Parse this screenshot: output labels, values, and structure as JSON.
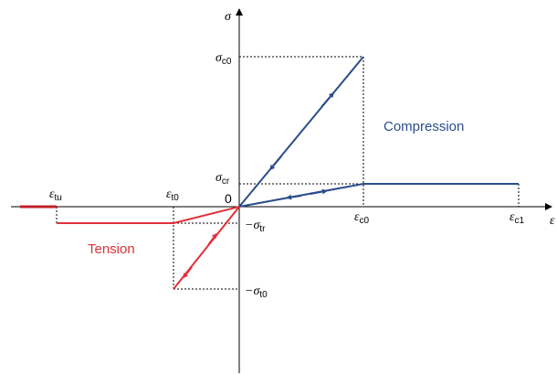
{
  "axes": {
    "y_label": "σ",
    "x_label": "ε",
    "origin": "0"
  },
  "stress_labels": [
    {
      "symbol": "σ",
      "sub": "c0"
    },
    {
      "symbol": "σ",
      "sub": "cr"
    },
    {
      "symbol": "−σ",
      "sub": "tr"
    },
    {
      "symbol": "−σ",
      "sub": "t0"
    }
  ],
  "strain_labels": [
    {
      "symbol": "ε",
      "sub": "tu"
    },
    {
      "symbol": "ε",
      "sub": "t0"
    },
    {
      "symbol": "ε",
      "sub": "c0"
    },
    {
      "symbol": "ε",
      "sub": "c1"
    }
  ],
  "regions": {
    "compression": "Compression",
    "tension": "Tension"
  }
}
